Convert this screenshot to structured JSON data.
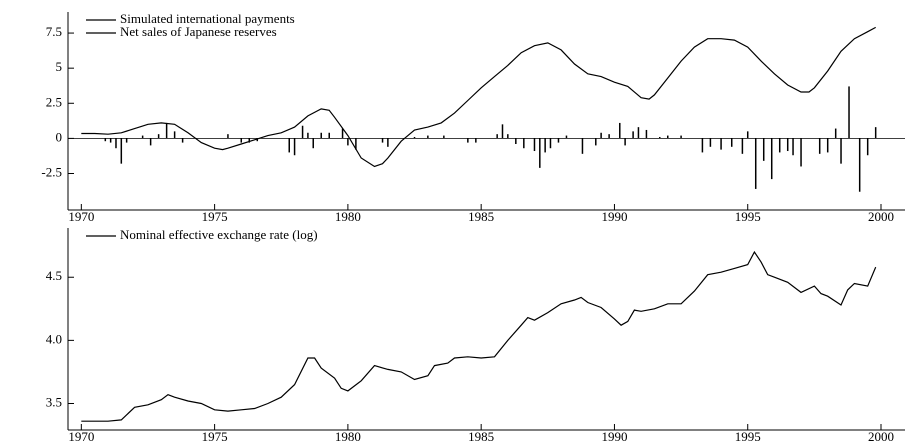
{
  "chart_data": [
    {
      "type": "line",
      "legend": "upper left",
      "grid": false,
      "xlim": [
        1969.5,
        2000.9
      ],
      "xticks": [
        1970,
        1975,
        1980,
        1985,
        1990,
        1995,
        2000
      ],
      "ylim": [
        -5.1,
        9
      ],
      "yticks": [
        -2.5,
        0.0,
        2.5,
        5.0,
        7.5
      ],
      "series": [
        {
          "name": "Simulated international payments",
          "type": "line",
          "color": "#000000",
          "x": [
            1970,
            1970.5,
            1971,
            1971.5,
            1972,
            1972.5,
            1973,
            1973.5,
            1974,
            1974.5,
            1975,
            1975.3,
            1975.5,
            1976,
            1976.5,
            1977,
            1977.5,
            1978,
            1978.5,
            1979,
            1979.3,
            1979.5,
            1980,
            1980.5,
            1981,
            1981.3,
            1981.5,
            1982,
            1982.5,
            1983,
            1983.5,
            1984,
            1984.5,
            1985,
            1985.5,
            1986,
            1986.5,
            1987,
            1987.5,
            1988,
            1988.5,
            1989,
            1989.5,
            1990,
            1990.5,
            1991,
            1991.3,
            1991.5,
            1992,
            1992.5,
            1993,
            1993.5,
            1994,
            1994.5,
            1995,
            1995.5,
            1996,
            1996.5,
            1997,
            1997.3,
            1997.5,
            1998,
            1998.5,
            1999,
            1999.5,
            1999.8
          ],
          "values": [
            0.35,
            0.35,
            0.3,
            0.4,
            0.7,
            1.0,
            1.1,
            1.0,
            0.4,
            -0.3,
            -0.7,
            -0.8,
            -0.7,
            -0.4,
            -0.1,
            0.2,
            0.4,
            0.8,
            1.6,
            2.1,
            2.0,
            1.5,
            0.2,
            -1.4,
            -2.0,
            -1.8,
            -1.4,
            -0.2,
            0.6,
            0.8,
            1.1,
            1.8,
            2.7,
            3.6,
            4.4,
            5.2,
            6.1,
            6.6,
            6.8,
            6.3,
            5.3,
            4.6,
            4.4,
            4.0,
            3.7,
            2.9,
            2.8,
            3.1,
            4.3,
            5.5,
            6.5,
            7.1,
            7.1,
            7.0,
            6.5,
            5.5,
            4.6,
            3.8,
            3.3,
            3.3,
            3.6,
            4.8,
            6.2,
            7.1,
            7.6,
            7.9
          ]
        },
        {
          "name": "Net sales of Japanese reserves",
          "type": "bar",
          "color": "#000000",
          "x": [
            1970.9,
            1971.1,
            1971.3,
            1971.5,
            1971.7,
            1972.3,
            1972.6,
            1972.9,
            1973.2,
            1973.5,
            1973.8,
            1975.5,
            1976,
            1976.3,
            1976.6,
            1977.8,
            1978,
            1978.3,
            1978.5,
            1978.7,
            1979,
            1979.3,
            1979.8,
            1980,
            1980.3,
            1981.3,
            1981.5,
            1982.5,
            1983,
            1983.6,
            1984.5,
            1984.8,
            1985.6,
            1985.8,
            1986,
            1986.3,
            1986.6,
            1987,
            1987.2,
            1987.4,
            1987.6,
            1987.9,
            1988.2,
            1988.8,
            1989.3,
            1989.5,
            1989.8,
            1990.2,
            1990.4,
            1990.7,
            1990.9,
            1991.2,
            1991.7,
            1992,
            1992.5,
            1993.3,
            1993.6,
            1994,
            1994.4,
            1994.8,
            1995,
            1995.3,
            1995.6,
            1995.9,
            1996.2,
            1996.5,
            1996.7,
            1997,
            1997.7,
            1998,
            1998.3,
            1998.5,
            1998.8,
            1999.2,
            1999.5,
            1999.8
          ],
          "values": [
            -0.2,
            -0.3,
            -0.7,
            -1.8,
            -0.3,
            0.2,
            -0.5,
            0.3,
            1.1,
            0.5,
            -0.3,
            0.3,
            -0.3,
            -0.3,
            -0.2,
            -1.0,
            -1.2,
            0.9,
            0.4,
            -0.7,
            0.4,
            0.4,
            0.7,
            -0.5,
            -0.8,
            -0.3,
            -0.6,
            0.1,
            0.2,
            0.2,
            -0.3,
            -0.3,
            0.3,
            1.0,
            0.3,
            -0.4,
            -0.7,
            -0.9,
            -2.1,
            -1.0,
            -0.7,
            -0.3,
            0.2,
            -1.1,
            -0.5,
            0.4,
            0.3,
            1.1,
            -0.5,
            0.5,
            0.8,
            0.6,
            0.1,
            0.2,
            0.2,
            -1.0,
            -0.6,
            -0.8,
            -0.6,
            -1.1,
            0.5,
            -3.6,
            -1.6,
            -2.9,
            -1.0,
            -0.9,
            -1.2,
            -2.0,
            -1.1,
            -1.0,
            0.7,
            -1.8,
            3.7,
            -3.8,
            -1.2,
            0.8
          ]
        }
      ]
    },
    {
      "type": "line",
      "legend": "upper left",
      "grid": false,
      "xlim": [
        1969.5,
        2000.9
      ],
      "xticks": [
        1970,
        1975,
        1980,
        1985,
        1990,
        1995,
        2000
      ],
      "ylim": [
        3.29,
        4.89
      ],
      "yticks": [
        {
          "value": 3.5,
          "label": "3.5"
        },
        {
          "value": 4.0,
          "label": "4.0"
        },
        {
          "value": 4.5,
          "label": "4.5"
        }
      ],
      "series": [
        {
          "name": "Nominal effective exchange rate (log)",
          "type": "line",
          "color": "#000000",
          "x": [
            1970,
            1970.5,
            1971,
            1971.5,
            1972,
            1972.5,
            1973,
            1973.25,
            1973.5,
            1974,
            1974.5,
            1975,
            1975.5,
            1976,
            1976.5,
            1977,
            1977.5,
            1978,
            1978.5,
            1978.75,
            1979,
            1979.5,
            1979.75,
            1980,
            1980.5,
            1981,
            1981.5,
            1982,
            1982.5,
            1983,
            1983.25,
            1983.75,
            1984,
            1984.5,
            1985,
            1985.5,
            1986,
            1986.5,
            1986.75,
            1987,
            1987.5,
            1988,
            1988.5,
            1988.75,
            1989,
            1989.5,
            1990,
            1990.25,
            1990.5,
            1990.75,
            1991,
            1991.5,
            1992,
            1992.5,
            1993,
            1993.5,
            1994,
            1994.5,
            1995,
            1995.25,
            1995.5,
            1995.75,
            1996,
            1996.5,
            1997,
            1997.5,
            1997.75,
            1998,
            1998.5,
            1998.75,
            1999,
            1999.5,
            1999.8
          ],
          "values": [
            3.36,
            3.36,
            3.36,
            3.37,
            3.47,
            3.49,
            3.53,
            3.57,
            3.55,
            3.52,
            3.5,
            3.45,
            3.44,
            3.45,
            3.46,
            3.5,
            3.55,
            3.65,
            3.86,
            3.86,
            3.78,
            3.7,
            3.62,
            3.6,
            3.68,
            3.8,
            3.77,
            3.75,
            3.69,
            3.72,
            3.8,
            3.82,
            3.86,
            3.87,
            3.86,
            3.87,
            4.0,
            4.12,
            4.18,
            4.16,
            4.22,
            4.29,
            4.32,
            4.34,
            4.3,
            4.26,
            4.17,
            4.12,
            4.15,
            4.24,
            4.23,
            4.25,
            4.29,
            4.29,
            4.39,
            4.52,
            4.54,
            4.57,
            4.6,
            4.7,
            4.62,
            4.52,
            4.5,
            4.46,
            4.38,
            4.43,
            4.37,
            4.35,
            4.28,
            4.4,
            4.45,
            4.43,
            4.58
          ]
        }
      ]
    }
  ]
}
